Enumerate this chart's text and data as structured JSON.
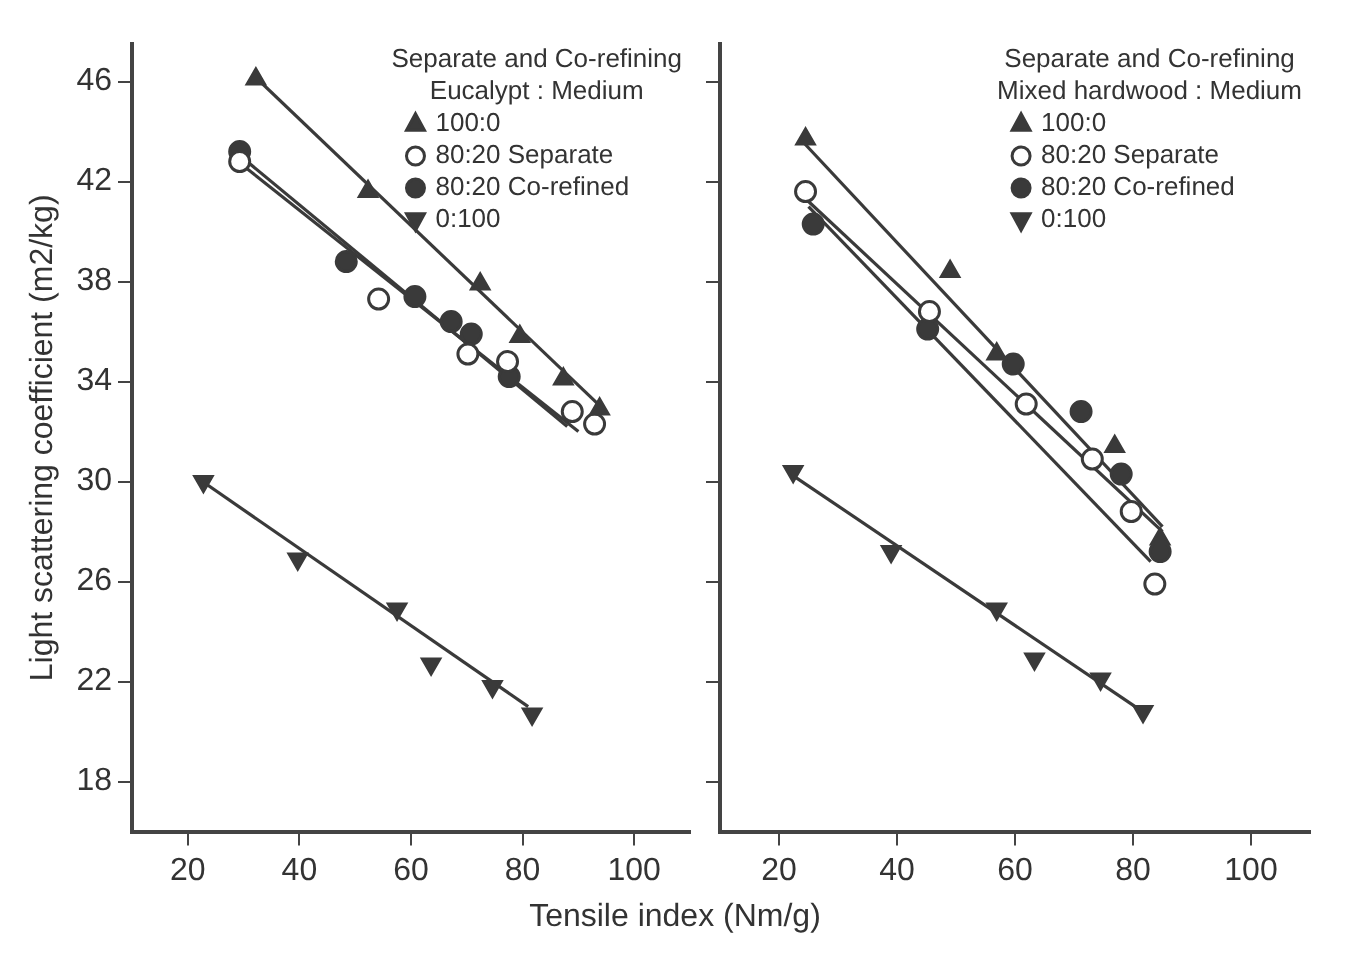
{
  "chart_data": [
    {
      "type": "scatter",
      "ylabel": "Light scattering coefficient (m2/kg)",
      "xlabel": "Tensile index (Nm/g)",
      "legend_title": "Separate and Co-refining\nEucalypt : Medium",
      "legend": "top right",
      "grid": false,
      "xlim": [
        10,
        110
      ],
      "xticks": [
        20,
        40,
        60,
        80,
        100
      ],
      "ylim": [
        16,
        47.5
      ],
      "yticks": [
        18,
        22,
        26,
        30,
        34,
        38,
        42,
        46
      ],
      "series": [
        {
          "name": "100:0",
          "color": "#3a3a3a",
          "marker": "triangle",
          "x": [
            32.2,
            52.3,
            72.4,
            79.5,
            87.3,
            93.8
          ],
          "values": [
            46.1,
            41.6,
            37.9,
            35.8,
            34.1,
            32.9
          ]
        },
        {
          "name": "80:20 Separate",
          "color": "#ffffff",
          "marker": "circle",
          "x": [
            29.3,
            54.2,
            70.2,
            77.3,
            88.9,
            92.9
          ],
          "values": [
            42.8,
            37.3,
            35.1,
            34.8,
            32.8,
            32.3
          ]
        },
        {
          "name": "80:20 Co-refined",
          "color": "#3a3a3a",
          "marker": "circle",
          "x": [
            29.3,
            48.4,
            60.7,
            67.2,
            70.8,
            77.6
          ],
          "values": [
            43.2,
            38.8,
            37.4,
            36.4,
            35.9,
            34.2
          ]
        },
        {
          "name": "0:100",
          "color": "#3a3a3a",
          "marker": "triangle-down",
          "x": [
            22.8,
            39.7,
            57.5,
            63.6,
            74.6,
            81.7
          ],
          "values": [
            30.0,
            26.9,
            24.9,
            22.7,
            21.8,
            20.7
          ]
        },
        {
          "type": "line",
          "color": "#3a3a3a",
          "marker": "none",
          "line_style": "solid",
          "x": [
            32,
            94
          ],
          "values": [
            46.2,
            33.0
          ]
        },
        {
          "type": "line",
          "color": "#3a3a3a",
          "marker": "none",
          "line_style": "solid",
          "x": [
            29,
            90
          ],
          "values": [
            42.8,
            32.0
          ]
        },
        {
          "type": "line",
          "color": "#3a3a3a",
          "marker": "none",
          "line_style": "solid",
          "x": [
            29,
            88
          ],
          "values": [
            43.1,
            32.2
          ]
        },
        {
          "type": "line",
          "color": "#3a3a3a",
          "marker": "none",
          "line_style": "solid",
          "x": [
            22,
            81
          ],
          "values": [
            30.1,
            21.0
          ]
        }
      ]
    },
    {
      "type": "scatter",
      "legend_title": "Separate and Co-refining\nMixed hardwood : Medium",
      "legend": "top right",
      "grid": false,
      "tick_labels": "x",
      "xlim": [
        10,
        110
      ],
      "xticks": [
        20,
        40,
        60,
        80,
        100
      ],
      "ylim": [
        16,
        47.5
      ],
      "yticks": [
        18,
        22,
        26,
        30,
        34,
        38,
        42,
        46
      ],
      "series": [
        {
          "name": "100:0",
          "color": "#3a3a3a",
          "marker": "triangle",
          "x": [
            24.5,
            49.0,
            56.9,
            76.9,
            84.6
          ],
          "values": [
            43.7,
            38.4,
            35.1,
            31.4,
            27.7
          ]
        },
        {
          "name": "80:20 Separate",
          "color": "#ffffff",
          "marker": "circle",
          "x": [
            24.5,
            45.5,
            61.9,
            73.1,
            79.7,
            83.7
          ],
          "values": [
            41.6,
            36.8,
            33.1,
            30.9,
            28.8,
            25.9
          ]
        },
        {
          "name": "80:20 Co-refined",
          "color": "#3a3a3a",
          "marker": "circle",
          "x": [
            25.8,
            45.2,
            59.7,
            71.2,
            78.0,
            84.6
          ],
          "values": [
            40.3,
            36.1,
            34.7,
            32.8,
            30.3,
            27.2
          ]
        },
        {
          "name": "0:100",
          "color": "#3a3a3a",
          "marker": "triangle-down",
          "x": [
            22.4,
            39.0,
            56.9,
            63.3,
            74.5,
            81.7
          ],
          "values": [
            30.4,
            27.2,
            24.9,
            22.9,
            22.1,
            20.8
          ]
        },
        {
          "type": "line",
          "color": "#3a3a3a",
          "marker": "none",
          "line_style": "solid",
          "x": [
            24,
            85
          ],
          "values": [
            43.6,
            28.2
          ]
        },
        {
          "type": "line",
          "color": "#3a3a3a",
          "marker": "none",
          "line_style": "solid",
          "x": [
            25,
            83
          ],
          "values": [
            41.0,
            26.8
          ]
        },
        {
          "type": "line",
          "color": "#3a3a3a",
          "marker": "none",
          "line_style": "solid",
          "x": [
            25,
            85
          ],
          "values": [
            41.2,
            28.0
          ]
        },
        {
          "type": "line",
          "color": "#3a3a3a",
          "marker": "none",
          "line_style": "solid",
          "x": [
            22,
            81
          ],
          "values": [
            30.3,
            20.9
          ]
        }
      ]
    }
  ]
}
